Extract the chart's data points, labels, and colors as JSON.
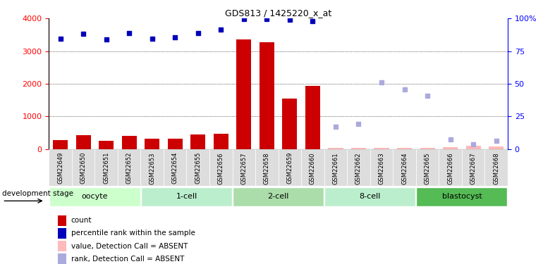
{
  "title": "GDS813 / 1425220_x_at",
  "samples": [
    "GSM22649",
    "GSM22650",
    "GSM22651",
    "GSM22652",
    "GSM22653",
    "GSM22654",
    "GSM22655",
    "GSM22656",
    "GSM22657",
    "GSM22658",
    "GSM22659",
    "GSM22660",
    "GSM22661",
    "GSM22662",
    "GSM22663",
    "GSM22664",
    "GSM22665",
    "GSM22666",
    "GSM22667",
    "GSM22668"
  ],
  "bar_values": [
    280,
    430,
    260,
    410,
    310,
    330,
    450,
    480,
    3350,
    3270,
    1540,
    1930,
    30,
    30,
    40,
    40,
    40,
    60,
    100,
    80
  ],
  "bar_absent": [
    false,
    false,
    false,
    false,
    false,
    false,
    false,
    false,
    false,
    false,
    false,
    false,
    true,
    true,
    true,
    true,
    true,
    true,
    true,
    true
  ],
  "rank_values": [
    3380,
    3540,
    3360,
    3560,
    3370,
    3430,
    3560,
    3650,
    3990,
    3980,
    3960,
    3920,
    null,
    null,
    null,
    null,
    null,
    null,
    null,
    null
  ],
  "rank_absent": [
    null,
    null,
    null,
    null,
    null,
    null,
    null,
    null,
    null,
    null,
    null,
    null,
    680,
    770,
    2050,
    1820,
    1640,
    300,
    150,
    250
  ],
  "stages": [
    {
      "label": "oocyte",
      "start": 0,
      "end": 3
    },
    {
      "label": "1-cell",
      "start": 4,
      "end": 7
    },
    {
      "label": "2-cell",
      "start": 8,
      "end": 11
    },
    {
      "label": "8-cell",
      "start": 12,
      "end": 15
    },
    {
      "label": "blastocyst",
      "start": 16,
      "end": 19
    }
  ],
  "stage_colors_light": [
    "#ccffcc",
    "#ccffcc",
    "#aaddaa",
    "#ccffcc",
    "#66cc66"
  ],
  "bar_color": "#cc0000",
  "bar_absent_color": "#ffbbbb",
  "rank_color": "#0000bb",
  "rank_absent_color": "#aaaadd",
  "ylim_left": [
    0,
    4000
  ],
  "ylim_right": [
    0,
    100
  ],
  "yticks_left": [
    0,
    1000,
    2000,
    3000,
    4000
  ],
  "yticks_right": [
    0,
    25,
    50,
    75,
    100
  ],
  "grid_values": [
    1000,
    2000,
    3000
  ],
  "legend_labels": [
    "count",
    "percentile rank within the sample",
    "value, Detection Call = ABSENT",
    "rank, Detection Call = ABSENT"
  ],
  "legend_colors": [
    "#cc0000",
    "#0000bb",
    "#ffbbbb",
    "#aaaadd"
  ],
  "dev_stage_label": "development stage",
  "background_color": "#ffffff",
  "fig_width": 7.7,
  "fig_height": 3.75
}
